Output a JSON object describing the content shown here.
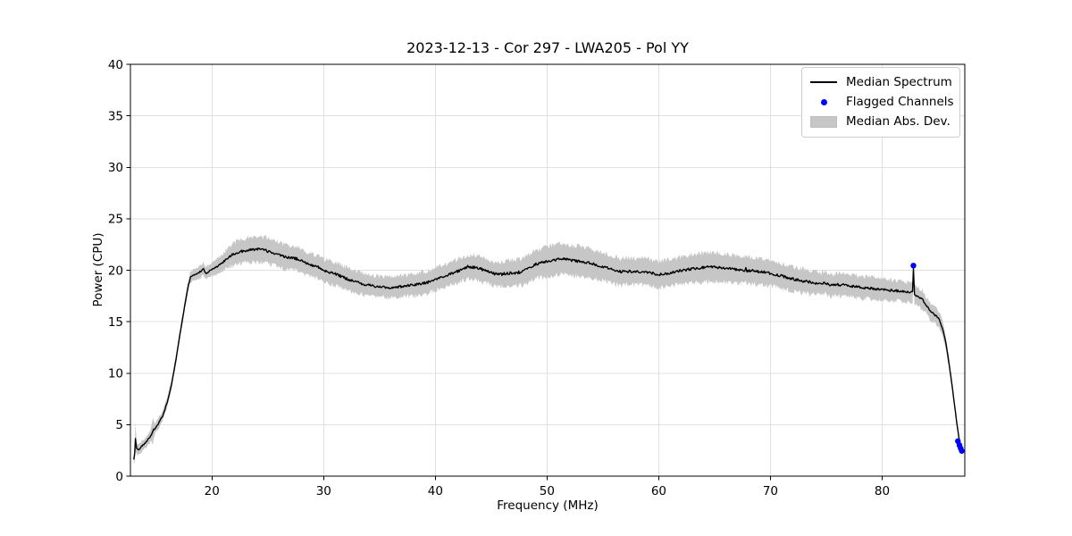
{
  "chart_data": {
    "type": "line",
    "title": "2023-12-13 - Cor 297 - LWA205 - Pol YY",
    "xlabel": "Frequency (MHz)",
    "ylabel": "Power (CPU)",
    "xlim": [
      12.7,
      87.4
    ],
    "ylim": [
      0,
      40
    ],
    "xticks": [
      20,
      30,
      40,
      50,
      60,
      70,
      80
    ],
    "yticks": [
      0,
      5,
      10,
      15,
      20,
      25,
      30,
      35,
      40
    ],
    "grid": true,
    "grid_color": "#e0e0e0",
    "legend": {
      "loc": "upper right",
      "entries": [
        "Median Spectrum",
        "Flagged Channels",
        "Median Abs. Dev."
      ]
    },
    "series": [
      {
        "name": "Median Spectrum",
        "kind": "line",
        "color": "#000000"
      },
      {
        "name": "Flagged Channels",
        "kind": "scatter",
        "color": "#0000ff",
        "points": [
          [
            82.8,
            20.45
          ],
          [
            86.78,
            3.4
          ],
          [
            86.92,
            3.0
          ],
          [
            87.03,
            2.7
          ],
          [
            87.13,
            2.45
          ]
        ]
      },
      {
        "name": "Median Abs. Dev.",
        "kind": "band",
        "color": "#c6c6c6"
      }
    ],
    "median_mad_columns": [
      "freq_mhz",
      "median_power_cpu",
      "mad"
    ],
    "median_mad_points": [
      [
        13.0,
        1.6,
        0.6
      ],
      [
        13.08,
        2.2,
        0.8
      ],
      [
        13.15,
        3.7,
        1.5
      ],
      [
        13.25,
        2.7,
        0.6
      ],
      [
        13.4,
        2.55,
        0.5
      ],
      [
        13.7,
        2.9,
        0.5
      ],
      [
        14.1,
        3.3,
        0.5
      ],
      [
        14.5,
        3.9,
        0.6
      ],
      [
        14.72,
        4.4,
        1.1
      ],
      [
        14.9,
        4.6,
        0.5
      ],
      [
        15.2,
        5.1,
        0.5
      ],
      [
        15.6,
        5.9,
        0.45
      ],
      [
        16.0,
        7.2,
        0.45
      ],
      [
        16.4,
        9.0,
        0.45
      ],
      [
        16.8,
        11.5,
        0.45
      ],
      [
        17.2,
        14.2,
        0.45
      ],
      [
        17.6,
        16.8,
        0.45
      ],
      [
        17.9,
        18.6,
        0.5
      ],
      [
        18.1,
        19.4,
        0.5
      ],
      [
        18.4,
        19.55,
        0.55
      ],
      [
        18.7,
        19.7,
        0.55
      ],
      [
        19.0,
        19.9,
        0.6
      ],
      [
        19.25,
        20.15,
        0.6
      ],
      [
        19.45,
        19.7,
        0.6
      ],
      [
        19.7,
        19.85,
        0.6
      ],
      [
        20.0,
        20.05,
        0.65
      ],
      [
        20.4,
        20.3,
        0.7
      ],
      [
        20.8,
        20.6,
        0.8
      ],
      [
        21.2,
        21.0,
        0.9
      ],
      [
        21.6,
        21.35,
        1.0
      ],
      [
        22.0,
        21.6,
        1.1
      ],
      [
        22.5,
        21.8,
        1.15
      ],
      [
        23.0,
        21.9,
        1.2
      ],
      [
        23.5,
        22.0,
        1.25
      ],
      [
        24.0,
        22.05,
        1.25
      ],
      [
        24.5,
        22.0,
        1.25
      ],
      [
        25.0,
        21.85,
        1.25
      ],
      [
        25.5,
        21.7,
        1.2
      ],
      [
        26.0,
        21.5,
        1.2
      ],
      [
        26.5,
        21.35,
        1.2
      ],
      [
        27.0,
        21.2,
        1.15
      ],
      [
        27.6,
        21.1,
        1.15
      ],
      [
        28.0,
        20.9,
        1.15
      ],
      [
        28.5,
        20.7,
        1.1
      ],
      [
        29.0,
        20.45,
        1.1
      ],
      [
        29.5,
        20.3,
        1.1
      ],
      [
        30.0,
        20.0,
        1.1
      ],
      [
        30.7,
        19.75,
        1.1
      ],
      [
        31.4,
        19.5,
        1.1
      ],
      [
        32.0,
        19.2,
        1.1
      ],
      [
        32.6,
        18.95,
        1.05
      ],
      [
        33.2,
        18.75,
        1.05
      ],
      [
        34.0,
        18.55,
        1.05
      ],
      [
        34.6,
        18.45,
        1.0
      ],
      [
        35.4,
        18.35,
        1.0
      ],
      [
        36.0,
        18.3,
        1.0
      ],
      [
        36.6,
        18.4,
        1.0
      ],
      [
        37.2,
        18.45,
        1.05
      ],
      [
        38.0,
        18.55,
        1.05
      ],
      [
        38.6,
        18.65,
        1.1
      ],
      [
        39.4,
        18.85,
        1.1
      ],
      [
        40.0,
        19.15,
        1.1
      ],
      [
        41.0,
        19.5,
        1.1
      ],
      [
        42.0,
        19.9,
        1.15
      ],
      [
        42.9,
        20.35,
        1.15
      ],
      [
        43.5,
        20.25,
        1.2
      ],
      [
        44.0,
        20.15,
        1.2
      ],
      [
        44.6,
        19.9,
        1.2
      ],
      [
        45.3,
        19.65,
        1.2
      ],
      [
        45.9,
        19.6,
        1.2
      ],
      [
        46.5,
        19.7,
        1.25
      ],
      [
        47.2,
        19.75,
        1.25
      ],
      [
        47.8,
        19.85,
        1.3
      ],
      [
        48.3,
        20.15,
        1.3
      ],
      [
        48.8,
        20.5,
        1.35
      ],
      [
        49.4,
        20.7,
        1.4
      ],
      [
        50.0,
        20.85,
        1.5
      ],
      [
        50.9,
        21.05,
        1.5
      ],
      [
        51.5,
        21.1,
        1.5
      ],
      [
        52.2,
        20.95,
        1.45
      ],
      [
        53.0,
        20.85,
        1.45
      ],
      [
        53.8,
        20.7,
        1.4
      ],
      [
        54.6,
        20.45,
        1.4
      ],
      [
        55.4,
        20.2,
        1.35
      ],
      [
        56.1,
        20.0,
        1.35
      ],
      [
        56.6,
        19.85,
        1.3
      ],
      [
        57.3,
        19.9,
        1.3
      ],
      [
        58.0,
        19.85,
        1.3
      ],
      [
        58.7,
        19.9,
        1.3
      ],
      [
        59.4,
        19.7,
        1.3
      ],
      [
        60.1,
        19.6,
        1.3
      ],
      [
        60.8,
        19.7,
        1.3
      ],
      [
        61.5,
        19.85,
        1.3
      ],
      [
        62.3,
        20.0,
        1.35
      ],
      [
        63.0,
        20.15,
        1.35
      ],
      [
        63.9,
        20.25,
        1.4
      ],
      [
        64.5,
        20.3,
        1.4
      ],
      [
        65.2,
        20.3,
        1.4
      ],
      [
        66.0,
        20.2,
        1.35
      ],
      [
        66.8,
        20.1,
        1.35
      ],
      [
        67.4,
        20.05,
        1.3
      ],
      [
        67.72,
        20.0,
        1.3
      ],
      [
        67.8,
        20.35,
        1.3
      ],
      [
        67.9,
        19.95,
        1.3
      ],
      [
        68.4,
        19.95,
        1.3
      ],
      [
        69.0,
        19.85,
        1.25
      ],
      [
        69.8,
        19.75,
        1.25
      ],
      [
        70.4,
        19.6,
        1.2
      ],
      [
        71.0,
        19.45,
        1.2
      ],
      [
        71.9,
        19.15,
        1.2
      ],
      [
        72.5,
        19.05,
        1.15
      ],
      [
        73.0,
        18.95,
        1.15
      ],
      [
        73.7,
        18.8,
        1.15
      ],
      [
        74.3,
        18.7,
        1.1
      ],
      [
        74.9,
        18.75,
        1.1
      ],
      [
        75.4,
        18.55,
        1.1
      ],
      [
        76.1,
        18.6,
        1.1
      ],
      [
        76.7,
        18.55,
        1.1
      ],
      [
        77.4,
        18.45,
        1.1
      ],
      [
        78.3,
        18.3,
        1.05
      ],
      [
        79.0,
        18.25,
        1.05
      ],
      [
        79.6,
        18.15,
        1.05
      ],
      [
        80.3,
        18.1,
        1.0
      ],
      [
        81.0,
        18.0,
        1.0
      ],
      [
        81.6,
        18.0,
        1.0
      ],
      [
        82.0,
        17.9,
        0.95
      ],
      [
        82.4,
        17.9,
        0.95
      ],
      [
        82.72,
        17.85,
        0.95
      ],
      [
        82.8,
        20.1,
        0.9
      ],
      [
        82.9,
        17.6,
        0.9
      ],
      [
        83.2,
        17.45,
        0.9
      ],
      [
        83.6,
        17.15,
        0.9
      ],
      [
        84.0,
        16.5,
        0.85
      ],
      [
        84.4,
        15.9,
        0.85
      ],
      [
        84.8,
        15.6,
        0.8
      ],
      [
        85.1,
        15.2,
        0.75
      ],
      [
        85.4,
        14.4,
        0.7
      ],
      [
        85.7,
        13.0,
        0.6
      ],
      [
        85.95,
        11.2,
        0.5
      ],
      [
        86.2,
        9.3,
        0.45
      ],
      [
        86.45,
        7.2,
        0.4
      ],
      [
        86.7,
        5.0,
        0.35
      ],
      [
        86.9,
        3.6,
        0.3
      ],
      [
        87.05,
        2.9,
        0.3
      ],
      [
        87.2,
        2.4,
        0.3
      ]
    ]
  }
}
